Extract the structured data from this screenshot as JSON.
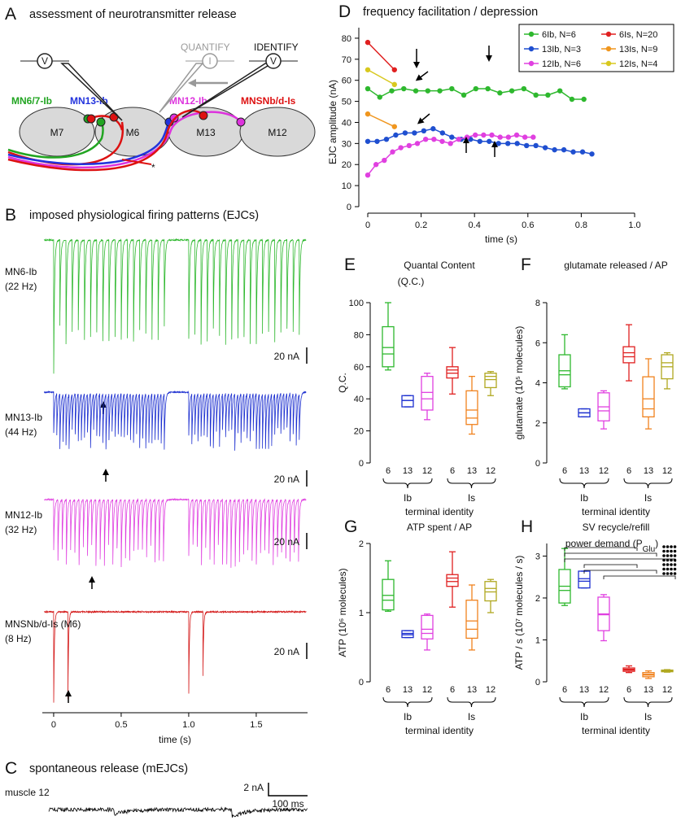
{
  "panels": {
    "A": {
      "letter": "A",
      "title": "assessment of neurotransmitter release",
      "quantify": "QUANTIFY",
      "identify": "IDENTIFY",
      "voltage_symbol": "V",
      "current_symbol": "I",
      "neurons": [
        "MN6/7-Ib",
        "MN13-Ib",
        "MN12-Ib",
        "MNSNb/d-Is"
      ],
      "neuron_colors": [
        "#22a522",
        "#2233dd",
        "#dd33dd",
        "#dd1111"
      ],
      "muscles": [
        "M7",
        "M6",
        "M13",
        "M12"
      ],
      "asterisk": "*"
    },
    "B": {
      "letter": "B",
      "title": "imposed physiological firing patterns (EJCs)",
      "traces": [
        {
          "name": "MN6-Ib",
          "rate": "(22 Hz)",
          "scale": "20 nA",
          "color": "#2eb82e"
        },
        {
          "name": "MN13-Ib",
          "rate": "(44 Hz)",
          "scale": "20 nA",
          "color": "#1c2fd0"
        },
        {
          "name": "MN12-Ib",
          "rate": "(32 Hz)",
          "scale": "20 nA",
          "color": "#e040e0"
        },
        {
          "name": "MNSNb/d-Is (M6)",
          "rate": "(8 Hz)",
          "scale": "20 nA",
          "color": "#d41a1a"
        }
      ],
      "xlabel": "time (s)",
      "xlim": [
        -0.084,
        1.88
      ],
      "xticks": [
        0,
        0.5,
        {
          "value": 1,
          "label": "1.0"
        },
        1.5
      ]
    },
    "C": {
      "letter": "C",
      "title": "spontaneous release (mEJCs)",
      "muscle": "muscle 12",
      "scale_y": "2 nA",
      "scale_x": "100 ms"
    }
  },
  "chart_data": [
    {
      "type": "line",
      "letter": "D",
      "title": "frequency facilitation / depression",
      "xlabel": "time (s)",
      "ylabel": "EJC amplitude (nA)",
      "xlim": [
        0,
        1
      ],
      "xticks": [
        0,
        0.2,
        0.4,
        0.6,
        0.8,
        {
          "value": 1,
          "label": "1.0"
        }
      ],
      "ylim": [
        0,
        85
      ],
      "yticks": [
        0,
        10,
        20,
        30,
        40,
        50,
        60,
        70,
        80
      ],
      "legend": "top-right",
      "series": [
        {
          "name": "6Ib, N=6",
          "color": "#2eb82e",
          "x": [
            0,
            0.045,
            0.09,
            0.135,
            0.18,
            0.225,
            0.27,
            0.315,
            0.36,
            0.405,
            0.45,
            0.495,
            0.54,
            0.585,
            0.63,
            0.675,
            0.72,
            0.765,
            0.81
          ],
          "values": [
            56,
            52,
            55,
            56,
            55,
            55,
            55,
            56,
            53,
            56,
            56,
            54,
            55,
            56,
            53,
            53,
            55,
            51,
            51
          ]
        },
        {
          "name": "6Is, N=20",
          "color": "#e02020",
          "x": [
            0,
            0.1
          ],
          "values": [
            78,
            65
          ]
        },
        {
          "name": "13Ib, N=3",
          "color": "#1f4fd0",
          "x": [
            0,
            0.035,
            0.07,
            0.105,
            0.14,
            0.175,
            0.21,
            0.245,
            0.28,
            0.315,
            0.35,
            0.385,
            0.42,
            0.455,
            0.49,
            0.525,
            0.56,
            0.595,
            0.63,
            0.665,
            0.7,
            0.735,
            0.77,
            0.805,
            0.84
          ],
          "values": [
            31,
            31,
            32,
            34,
            35,
            35,
            36,
            37,
            35,
            33,
            32,
            32,
            31,
            31,
            30,
            30,
            30,
            29,
            29,
            28,
            27,
            27,
            26,
            26,
            25
          ]
        },
        {
          "name": "13Is, N=9",
          "color": "#f0961e",
          "x": [
            0,
            0.1
          ],
          "values": [
            44,
            38
          ]
        },
        {
          "name": "12Ib, N=6",
          "color": "#e040e0",
          "x": [
            0,
            0.031,
            0.062,
            0.093,
            0.124,
            0.155,
            0.186,
            0.217,
            0.248,
            0.279,
            0.31,
            0.341,
            0.372,
            0.403,
            0.434,
            0.465,
            0.496,
            0.527,
            0.558,
            0.589,
            0.62
          ],
          "values": [
            15,
            20,
            22,
            26,
            28,
            29,
            30,
            32,
            32,
            31,
            30,
            32,
            33,
            34,
            34,
            34,
            33,
            33,
            34,
            33,
            33
          ]
        },
        {
          "name": "12Is, N=4",
          "color": "#d8c81e",
          "x": [
            0,
            0.1
          ],
          "values": [
            65,
            58
          ]
        }
      ]
    },
    {
      "type": "box",
      "letter": "E",
      "title": "Quantal Content",
      "subtitle": "(Q.C.)",
      "ylabel": "Q.C.",
      "xlabel": "terminal identity",
      "categories": [
        "6",
        "13",
        "12",
        "6",
        "13",
        "12"
      ],
      "groups": [
        "Ib",
        "Is"
      ],
      "colors": [
        "#2eb82e",
        "#1c2fd0",
        "#e040e0",
        "#e02020",
        "#f0821e",
        "#b0a820"
      ],
      "ylim": [
        0,
        100
      ],
      "yticks": [
        0,
        20,
        40,
        60,
        80,
        100
      ],
      "whisker_low": [
        58,
        35,
        27,
        43,
        18,
        42
      ],
      "q1": [
        60,
        35,
        33,
        53,
        24,
        47
      ],
      "median": [
        68,
        39,
        40,
        56,
        28,
        52
      ],
      "mean": [
        72,
        39,
        44,
        58,
        33,
        54
      ],
      "q3": [
        85,
        42,
        54,
        60,
        45,
        56
      ],
      "whisker_high": [
        100,
        42,
        56,
        72,
        54,
        57
      ]
    },
    {
      "type": "box",
      "letter": "F",
      "title": "glutamate released / AP",
      "ylabel": "glutamate  (10⁵ molecules)",
      "xlabel": "terminal identity",
      "categories": [
        "6",
        "13",
        "12",
        "6",
        "13",
        "12"
      ],
      "groups": [
        "Ib",
        "Is"
      ],
      "colors": [
        "#2eb82e",
        "#1c2fd0",
        "#e040e0",
        "#e02020",
        "#f0821e",
        "#b0a820"
      ],
      "ylim": [
        0,
        8
      ],
      "yticks": [
        0,
        2,
        4,
        6,
        8
      ],
      "whisker_low": [
        3.7,
        2.3,
        1.7,
        4.1,
        1.7,
        3.7
      ],
      "q1": [
        3.8,
        2.3,
        2.1,
        5.0,
        2.3,
        4.2
      ],
      "median": [
        4.4,
        2.5,
        2.6,
        5.3,
        2.7,
        4.8
      ],
      "mean": [
        4.6,
        2.5,
        2.8,
        5.5,
        3.2,
        5.0
      ],
      "q3": [
        5.4,
        2.7,
        3.5,
        5.8,
        4.3,
        5.4
      ],
      "whisker_high": [
        6.4,
        2.7,
        3.6,
        6.9,
        5.2,
        5.5
      ]
    },
    {
      "type": "box",
      "letter": "G",
      "title": "ATP spent / AP",
      "ylabel": "ATP  (10⁶ molecules)",
      "xlabel": "terminal identity",
      "categories": [
        "6",
        "13",
        "12",
        "6",
        "13",
        "12"
      ],
      "groups": [
        "Ib",
        "Is"
      ],
      "colors": [
        "#2eb82e",
        "#1c2fd0",
        "#e040e0",
        "#e02020",
        "#f0821e",
        "#b0a820"
      ],
      "ylim": [
        0,
        2
      ],
      "yticks": [
        0,
        1,
        2
      ],
      "whisker_low": [
        1.02,
        0.64,
        0.46,
        1.08,
        0.46,
        1.0
      ],
      "q1": [
        1.04,
        0.64,
        0.62,
        1.38,
        0.63,
        1.17
      ],
      "median": [
        1.18,
        0.68,
        0.7,
        1.45,
        0.76,
        1.3
      ],
      "mean": [
        1.25,
        0.7,
        0.76,
        1.5,
        0.88,
        1.35
      ],
      "q3": [
        1.48,
        0.74,
        0.96,
        1.55,
        1.18,
        1.45
      ],
      "whisker_high": [
        1.75,
        0.74,
        0.98,
        1.88,
        1.4,
        1.48
      ]
    },
    {
      "type": "box",
      "letter": "H",
      "title": "SV recycle/refill",
      "subtitle": [
        "power demand  (P",
        "Glu",
        ")"
      ],
      "ylabel": "ATP / s  (10⁷ molecules / s)",
      "xlabel": "terminal identity",
      "categories": [
        "6",
        "13",
        "12",
        "6",
        "13",
        "12"
      ],
      "groups": [
        "Ib",
        "Is"
      ],
      "colors": [
        "#2eb82e",
        "#1c2fd0",
        "#e040e0",
        "#e02020",
        "#f0821e",
        "#b0a820"
      ],
      "ylim": [
        0,
        3.3
      ],
      "yticks": [
        0,
        1,
        2,
        3
      ],
      "whisker_low": [
        1.82,
        2.24,
        0.98,
        0.22,
        0.08,
        0.23
      ],
      "q1": [
        1.88,
        2.24,
        1.22,
        0.25,
        0.12,
        0.24
      ],
      "median": [
        2.18,
        2.4,
        1.6,
        0.28,
        0.16,
        0.26
      ],
      "mean": [
        2.28,
        2.46,
        1.62,
        0.3,
        0.18,
        0.27
      ],
      "q3": [
        2.68,
        2.64,
        2.02,
        0.33,
        0.22,
        0.28
      ],
      "whisker_high": [
        3.18,
        2.64,
        2.08,
        0.38,
        0.26,
        0.29
      ]
    }
  ]
}
